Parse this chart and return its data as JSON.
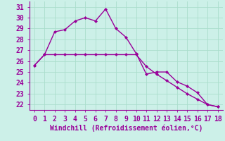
{
  "xlabel": "Windchill (Refroidissement éolien,°C)",
  "line1_x": [
    0,
    1,
    2,
    3,
    4,
    5,
    6,
    7,
    8,
    9,
    10,
    11,
    12,
    13,
    14,
    15,
    16,
    17,
    18
  ],
  "line1_y": [
    25.6,
    26.6,
    28.7,
    28.9,
    29.7,
    30.0,
    29.7,
    30.8,
    29.0,
    28.2,
    26.7,
    24.8,
    25.0,
    25.0,
    24.1,
    23.7,
    23.1,
    22.0,
    21.8
  ],
  "line2_x": [
    0,
    1,
    2,
    3,
    4,
    5,
    6,
    7,
    8,
    9,
    10,
    11,
    12,
    13,
    14,
    15,
    16,
    17,
    18
  ],
  "line2_y": [
    25.6,
    26.6,
    26.6,
    26.6,
    26.6,
    26.6,
    26.6,
    26.6,
    26.6,
    26.6,
    26.6,
    25.5,
    24.8,
    24.2,
    23.6,
    23.0,
    22.5,
    22.0,
    21.8
  ],
  "line_color": "#990099",
  "bg_color": "#ccf0e8",
  "grid_color": "#aaddcc",
  "axis_color": "#990099",
  "xlim": [
    -0.5,
    18.5
  ],
  "ylim": [
    21.5,
    31.5
  ],
  "yticks": [
    22,
    23,
    24,
    25,
    26,
    27,
    28,
    29,
    30,
    31
  ],
  "xticks": [
    0,
    1,
    2,
    3,
    4,
    5,
    6,
    7,
    8,
    9,
    10,
    11,
    12,
    13,
    14,
    15,
    16,
    17,
    18
  ],
  "tick_fontsize": 7,
  "xlabel_fontsize": 7,
  "marker": "D",
  "markersize": 2.5,
  "linewidth": 1.0
}
